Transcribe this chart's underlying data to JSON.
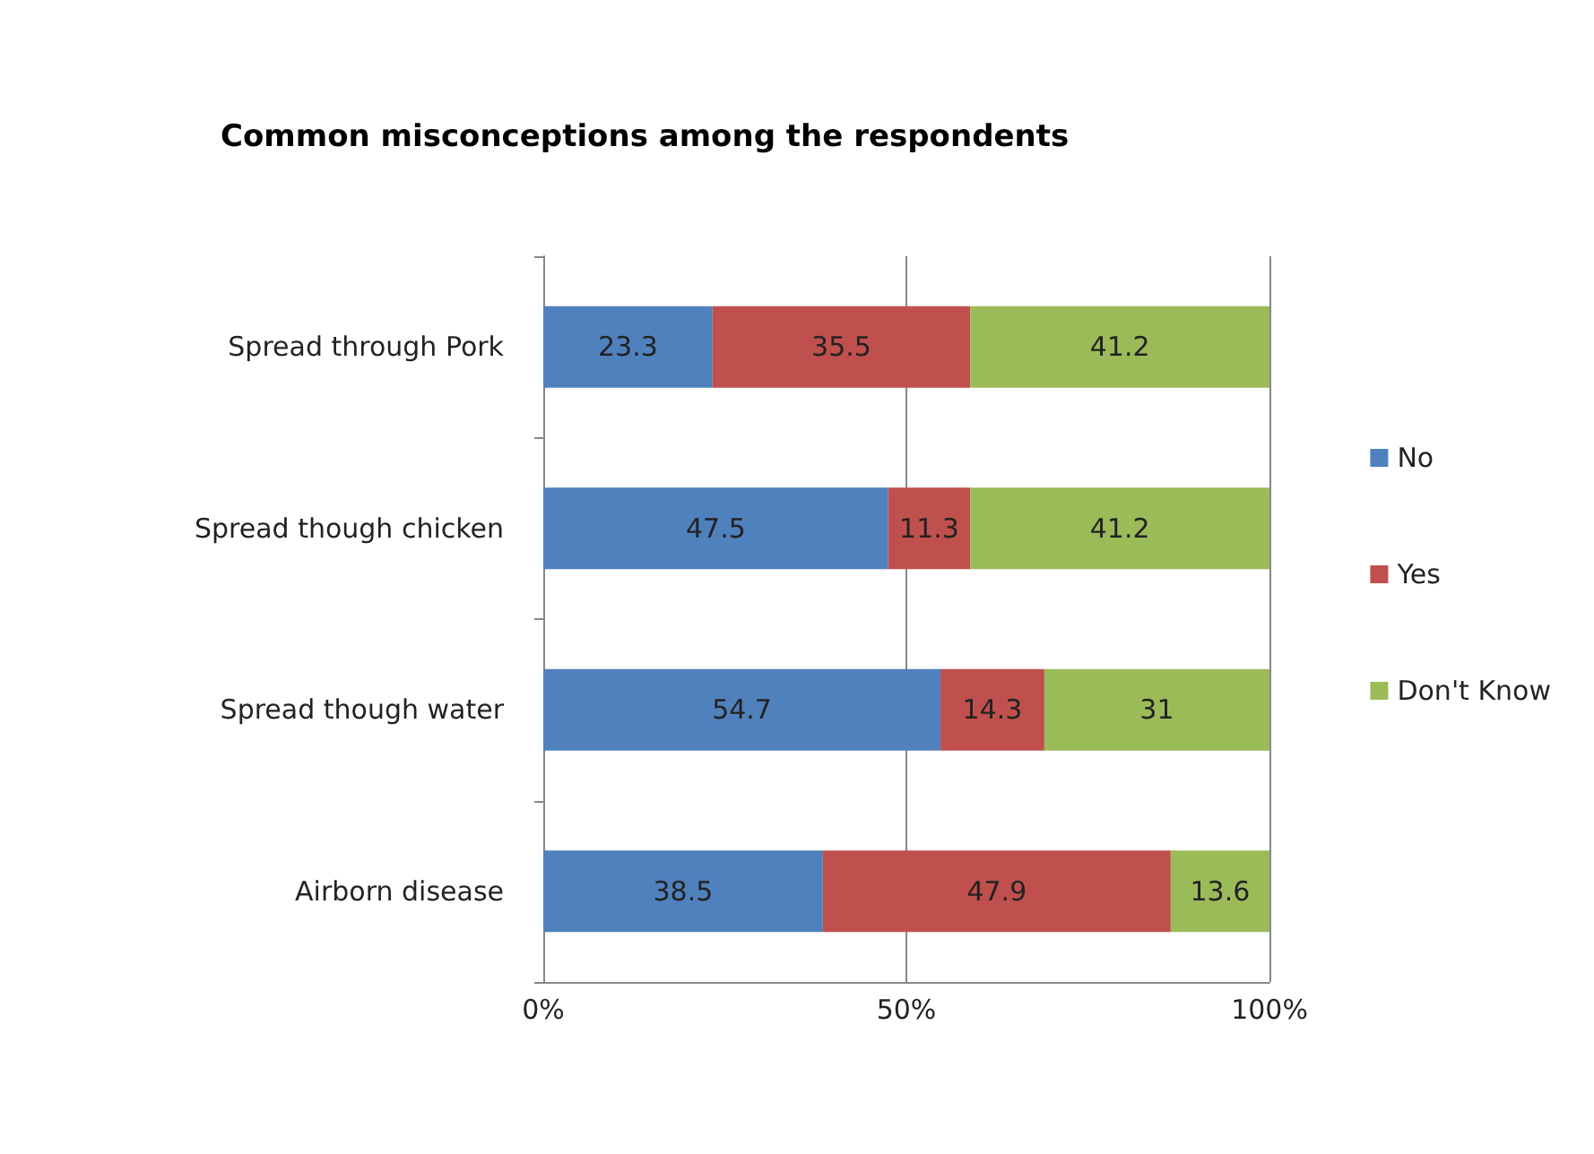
{
  "chart_data": {
    "type": "bar",
    "title": "Common misconceptions among the respondents",
    "orientation": "horizontal",
    "stacked": true,
    "data_labels": true,
    "grid": "x",
    "legend": "right",
    "categories": [
      "Spread through Pork",
      "Spread though chicken",
      "Spread though water",
      "Airborn disease"
    ],
    "series": [
      {
        "name": "No",
        "color": "#4f81bd",
        "values": [
          23.3,
          47.5,
          54.7,
          38.5
        ]
      },
      {
        "name": "Yes",
        "color": "#c0504d",
        "values": [
          35.5,
          11.3,
          14.3,
          47.9
        ]
      },
      {
        "name": "Don't Know",
        "color": "#9bbb59",
        "values": [
          41.2,
          41.2,
          31,
          13.6
        ]
      }
    ],
    "xlim": [
      0,
      100
    ],
    "xticks": [
      {
        "value": 0,
        "label": "0%"
      },
      {
        "value": 50,
        "label": "50%"
      },
      {
        "value": 100,
        "label": "100%"
      }
    ]
  }
}
